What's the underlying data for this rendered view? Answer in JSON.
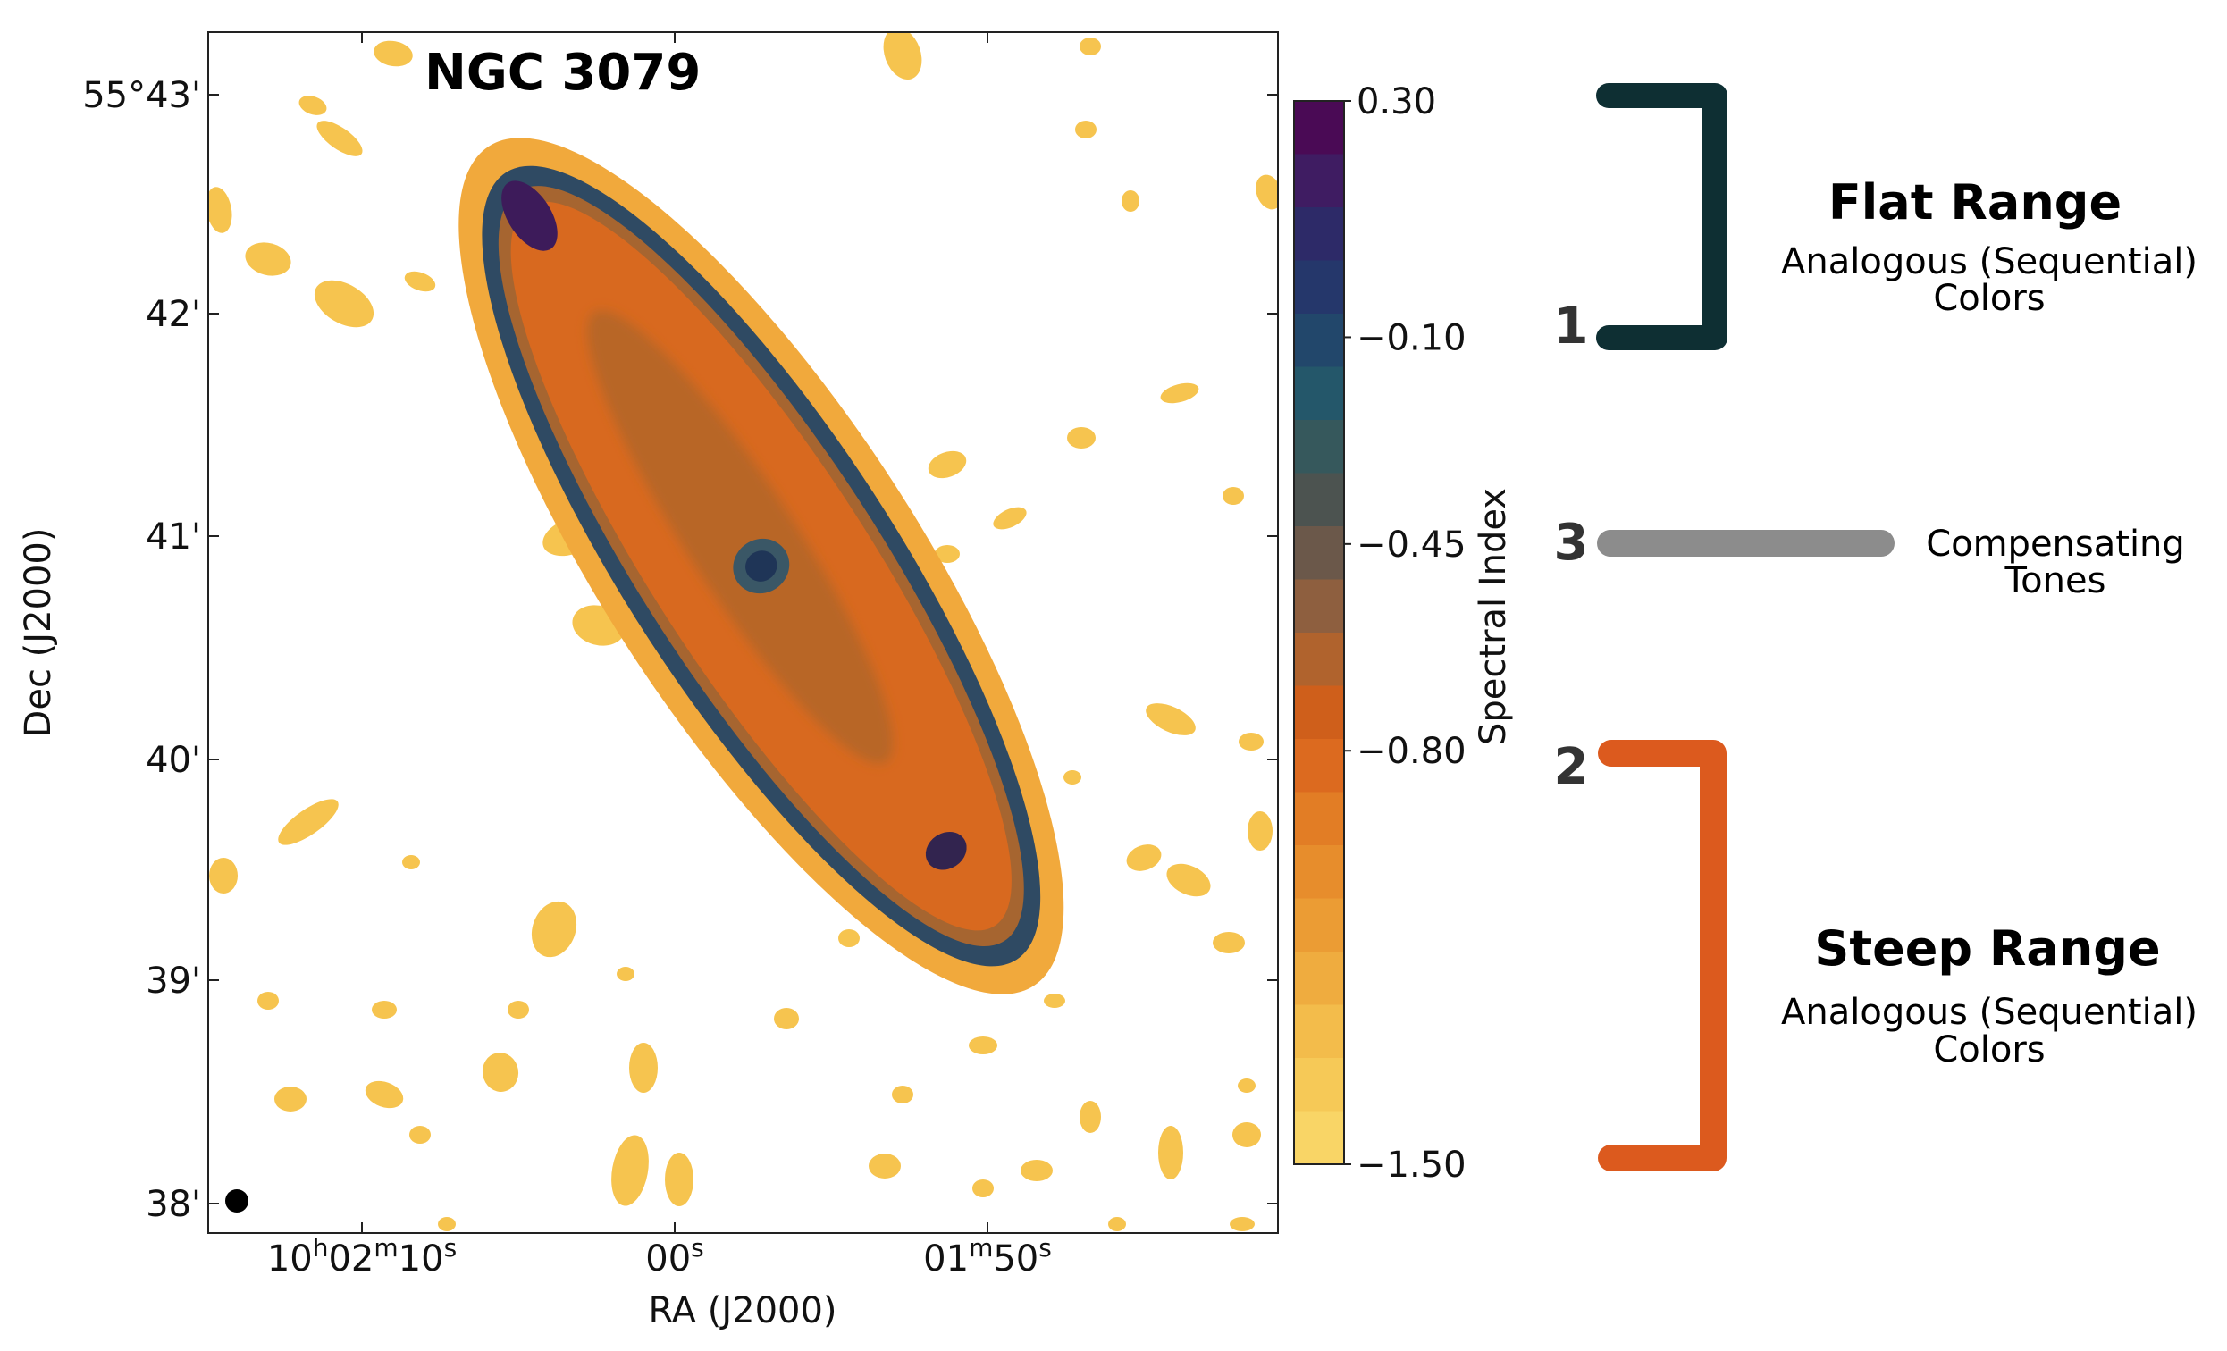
{
  "chart_data": {
    "type": "heatmap",
    "title": "NGC 3079",
    "xlabel": "RA (J2000)",
    "ylabel": "Dec (J2000)",
    "x_ticks": [
      {
        "h": "10",
        "m": "02",
        "s": "10",
        "label": "10h02m10s"
      },
      {
        "h": "",
        "m": "",
        "s": "00",
        "label": "00s"
      },
      {
        "h": "",
        "m": "01",
        "s": "50",
        "label": "01m50s"
      }
    ],
    "y_ticks": [
      "55°43'",
      "42'",
      "41'",
      "40'",
      "39'",
      "38'"
    ],
    "colorbar": {
      "label": "Spectral Index",
      "range": [
        -1.5,
        0.3
      ],
      "ticks": [
        "0.30",
        "−0.10",
        "−0.45",
        "−0.80",
        "−1.50"
      ],
      "tick_values": [
        0.3,
        -0.1,
        -0.45,
        -0.8,
        -1.5
      ],
      "colors": [
        "#4a0a55",
        "#3f1c62",
        "#2d2a68",
        "#25376b",
        "#22476b",
        "#24576a",
        "#36585c",
        "#4c5350",
        "#6b584a",
        "#8e5f3f",
        "#b0632d",
        "#cf5f1b",
        "#dc6a1f",
        "#e27d25",
        "#e78d2c",
        "#eb9c34",
        "#efac3f",
        "#f3bc4b",
        "#f6c957",
        "#f9d566"
      ]
    }
  },
  "annotations": {
    "flat": {
      "number": "1",
      "title": "Flat Range",
      "line1": "Analogous (Sequential)",
      "line2": "Colors",
      "color": "#0e2f33"
    },
    "compensating": {
      "number": "3",
      "line1": "Compensating",
      "line2": "Tones",
      "color": "#8c8c8c"
    },
    "steep": {
      "number": "2",
      "title": "Steep Range",
      "line1": "Analogous (Sequential)",
      "line2": "Colors",
      "color": "#dc5a1e"
    }
  }
}
